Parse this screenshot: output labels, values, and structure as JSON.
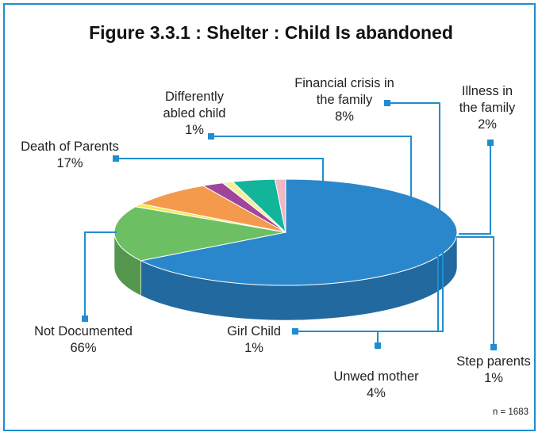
{
  "chart_data": {
    "type": "pie",
    "title": "Figure 3.3.1 : Shelter : Child Is abandoned",
    "note": "n = 1683",
    "slices": [
      {
        "name": "Not Documented",
        "label_lines": [
          "Not Documented"
        ],
        "pct_label": "66%",
        "value": 66,
        "color": "#2b87cc"
      },
      {
        "name": "Death of Parents",
        "label_lines": [
          "Death of Parents"
        ],
        "pct_label": "17%",
        "value": 17,
        "color": "#6cc063"
      },
      {
        "name": "Differently abled child",
        "label_lines": [
          "Differently",
          "abled child"
        ],
        "pct_label": "1%",
        "value": 1,
        "color": "#f2ea5a"
      },
      {
        "name": "Financial crisis in the family",
        "label_lines": [
          "Financial crisis in",
          "the family"
        ],
        "pct_label": "8%",
        "value": 8,
        "color": "#f39a4c"
      },
      {
        "name": "Illness in the family",
        "label_lines": [
          "Illness in",
          "the family"
        ],
        "pct_label": "2%",
        "value": 2,
        "color": "#a0459b"
      },
      {
        "name": "Step parents",
        "label_lines": [
          "Step parents"
        ],
        "pct_label": "1%",
        "value": 1,
        "color": "#f5ee9c"
      },
      {
        "name": "Unwed mother",
        "label_lines": [
          "Unwed mother"
        ],
        "pct_label": "4%",
        "value": 4,
        "color": "#12b49a"
      },
      {
        "name": "Girl Child",
        "label_lines": [
          "Girl Child"
        ],
        "pct_label": "1%",
        "value": 1,
        "color": "#f0b8c4"
      }
    ]
  },
  "colors": {
    "border": "#1f8ed0",
    "leader": "#1f8ed0"
  }
}
